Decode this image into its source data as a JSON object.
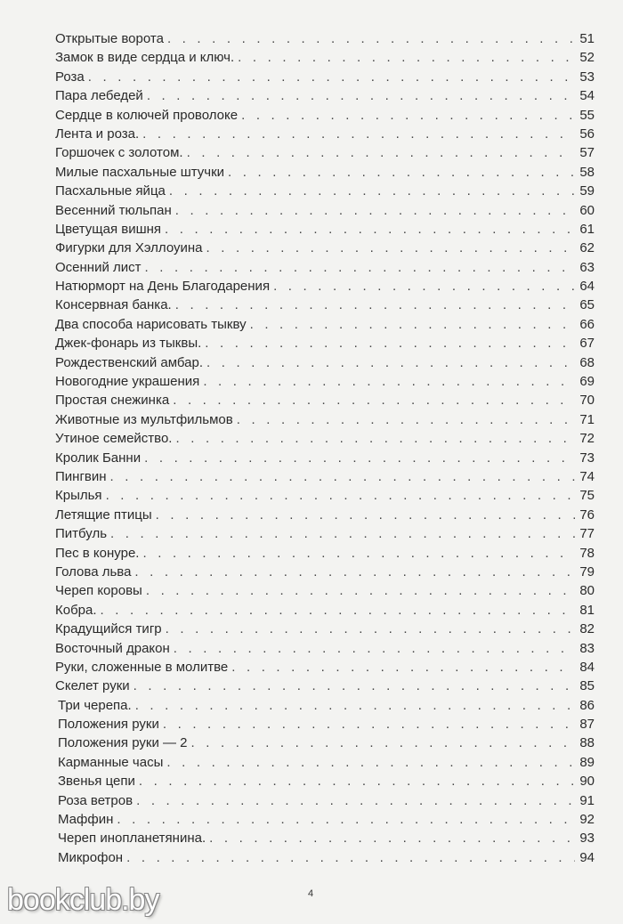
{
  "toc": [
    {
      "title": "Открытые ворота",
      "page": "51"
    },
    {
      "title": "Замок в виде сердца и ключ.",
      "page": "52"
    },
    {
      "title": "Роза",
      "page": "53"
    },
    {
      "title": "Пара лебедей",
      "page": "54"
    },
    {
      "title": "Сердце в колючей проволоке",
      "page": "55"
    },
    {
      "title": "Лента и роза.",
      "page": "56"
    },
    {
      "title": "Горшочек с золотом.",
      "page": "57"
    },
    {
      "title": "Милые пасхальные штучки",
      "page": "58"
    },
    {
      "title": "Пасхальные яйца",
      "page": "59"
    },
    {
      "title": "Весенний тюльпан",
      "page": "60"
    },
    {
      "title": "Цветущая вишня",
      "page": "61"
    },
    {
      "title": "Фигурки для Хэллоуина",
      "page": "62"
    },
    {
      "title": "Осенний лист",
      "page": "63"
    },
    {
      "title": "Натюрморт на День Благодарения",
      "page": "64"
    },
    {
      "title": "Консервная банка.",
      "page": "65"
    },
    {
      "title": "Два способа нарисовать тыкву",
      "page": "66"
    },
    {
      "title": "Джек-фонарь из тыквы.",
      "page": "67"
    },
    {
      "title": "Рождественский амбар.",
      "page": "68"
    },
    {
      "title": "Новогодние украшения",
      "page": "69"
    },
    {
      "title": "Простая снежинка",
      "page": "70"
    },
    {
      "title": "Животные из мультфильмов",
      "page": "71"
    },
    {
      "title": "Утиное семейство.",
      "page": "72"
    },
    {
      "title": "Кролик Банни",
      "page": "73"
    },
    {
      "title": "Пингвин",
      "page": "74"
    },
    {
      "title": "Крылья",
      "page": "75"
    },
    {
      "title": "Летящие птицы",
      "page": "76"
    },
    {
      "title": "Питбуль",
      "page": "77"
    },
    {
      "title": "Пес в конуре.",
      "page": "78"
    },
    {
      "title": "Голова льва",
      "page": "79"
    },
    {
      "title": "Череп коровы",
      "page": "80"
    },
    {
      "title": "Кобра.",
      "page": "81"
    },
    {
      "title": "Крадущийся тигр",
      "page": "82"
    },
    {
      "title": "Восточный дракон",
      "page": "83"
    },
    {
      "title": "Руки, сложенные в молитве",
      "page": "84"
    },
    {
      "title": "Скелет руки",
      "page": "85"
    },
    {
      "title": "Три черепа.",
      "page": "86"
    },
    {
      "title": "Положения руки",
      "page": "87"
    },
    {
      "title": "Положения руки — 2",
      "page": "88"
    },
    {
      "title": "Карманные часы",
      "page": "89"
    },
    {
      "title": "Звенья цепи",
      "page": "90"
    },
    {
      "title": "Роза ветров",
      "page": "91"
    },
    {
      "title": "Маффин",
      "page": "92"
    },
    {
      "title": "Череп инопланетянина.",
      "page": "93"
    },
    {
      "title": "Микрофон",
      "page": "94"
    }
  ],
  "folio": "4",
  "watermark": "bookclub.by"
}
